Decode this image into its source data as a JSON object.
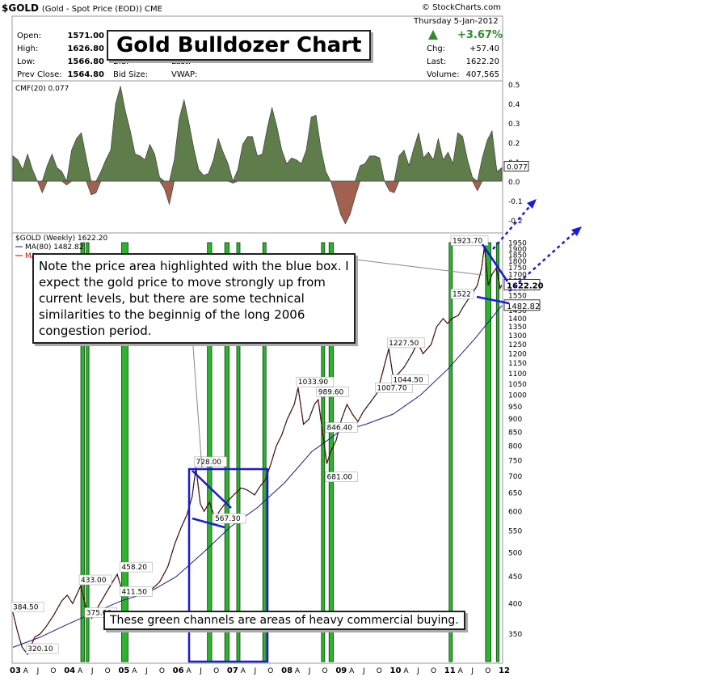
{
  "header": {
    "symbol": "$GOLD",
    "subtitle": "(Gold - Spot Price (EOD)) CME",
    "source": "© StockCharts.com",
    "date": "Thursday 5-Jan-2012",
    "stats_left": [
      {
        "label": "Open:",
        "value": "1571.00"
      },
      {
        "label": "High:",
        "value": "1626.80"
      },
      {
        "label": "Low:",
        "value": "1566.80"
      },
      {
        "label": "Prev Close:",
        "value": "1564.80"
      }
    ],
    "stats_mid": [
      "Bid:",
      "Bid Size:"
    ],
    "stats_mid2": [
      "Last:",
      "VWAP:"
    ],
    "stats_right": [
      {
        "label": "Chg:",
        "value": "+57.40"
      },
      {
        "label": "Last:",
        "value": "1622.20"
      },
      {
        "label": "Volume:",
        "value": "407,565"
      }
    ],
    "pct_change": "+3.67%",
    "up_color": "#2e8b2e"
  },
  "title_box": "Gold Bulldozer Chart",
  "note_box": "Note the price area highlighted with the blue box.  I expect the gold price to move strongly up from current levels, but there are some technical similarities to the beginnig of the long 2006 congestion period.",
  "green_note": "These green channels are areas of heavy commercial buying.",
  "chart_data": [
    {
      "type": "area",
      "label": "CMF(20) 0.077",
      "ylim": [
        -0.25,
        0.5
      ],
      "y_ticks": [
        "0.5",
        "0.4",
        "0.3",
        "0.2",
        "0.1",
        "0.0",
        "-0.1",
        "-0.2"
      ],
      "current": "0.077",
      "colors": {
        "positive": "#5e7d4a",
        "negative": "#a0614e"
      },
      "values": [
        0.13,
        0.11,
        0.06,
        0.14,
        0.06,
        0.0,
        -0.06,
        0.08,
        0.14,
        0.07,
        0.05,
        -0.02,
        0.16,
        0.22,
        0.25,
        0.12,
        -0.07,
        -0.06,
        0.05,
        0.11,
        0.16,
        0.4,
        0.49,
        0.36,
        0.26,
        0.14,
        0.13,
        0.11,
        0.19,
        0.14,
        0.02,
        -0.04,
        -0.12,
        0.11,
        0.32,
        0.42,
        0.3,
        0.17,
        0.06,
        0.03,
        0.04,
        0.11,
        0.22,
        0.15,
        0.09,
        -0.01,
        0.06,
        0.19,
        0.23,
        0.23,
        0.13,
        0.14,
        0.27,
        0.38,
        0.28,
        0.16,
        0.09,
        0.12,
        0.11,
        0.09,
        0.16,
        0.33,
        0.34,
        0.17,
        0.05,
        0.0,
        -0.08,
        -0.17,
        -0.22,
        -0.17,
        -0.08,
        0.08,
        0.09,
        0.13,
        0.13,
        0.12,
        0.0,
        -0.05,
        -0.06,
        0.13,
        0.16,
        0.08,
        0.17,
        0.25,
        0.12,
        0.15,
        0.11,
        0.22,
        0.11,
        0.15,
        0.09,
        0.25,
        0.23,
        0.11,
        0.02,
        -0.05,
        0.12,
        0.21,
        0.26,
        0.05,
        0.07
      ]
    },
    {
      "type": "line",
      "label": "$GOLD (Weekly) 1622.20",
      "legend": [
        "MA(80) 1482.82",
        "MA"
      ],
      "y_scale": "log",
      "ylim": [
        310,
        1990
      ],
      "y_ticks": [
        350,
        400,
        450,
        500,
        550,
        600,
        650,
        700,
        750,
        800,
        850,
        900,
        950,
        1000,
        1050,
        1100,
        1150,
        1200,
        1250,
        1300,
        1350,
        1400,
        1450,
        1500,
        1550,
        1600,
        1650,
        1700,
        1750,
        1800,
        1850,
        1900,
        1950
      ],
      "x_labels": [
        "03",
        "A",
        "J",
        "O",
        "04",
        "A",
        "J",
        "O",
        "05",
        "A",
        "J",
        "O",
        "06",
        "A",
        "J",
        "O",
        "07",
        "A",
        "J",
        "O",
        "08",
        "A",
        "J",
        "O",
        "09",
        "A",
        "J",
        "O",
        "10",
        "A",
        "J",
        "O",
        "11",
        "A",
        "J",
        "O",
        "12"
      ],
      "x_range": [
        "2003-01",
        "2012-01"
      ],
      "price_annotations": [
        "384.50",
        "433.00",
        "458.20",
        "728.00",
        "1033.90",
        "989.60",
        "1007.70",
        "1227.50",
        "1923.70",
        "320.10",
        "375.00",
        "411.50",
        "567.30",
        "846.40",
        "681.00",
        "1044.50",
        "1522"
      ],
      "last_price": "1622.20",
      "ma_label": "1482.82",
      "series": [
        {
          "name": "$GOLD",
          "color": "#111111",
          "x": [
            2003.0,
            2003.08,
            2003.17,
            2003.27,
            2003.4,
            2003.5,
            2003.6,
            2003.75,
            2003.9,
            2004.0,
            2004.1,
            2004.25,
            2004.35,
            2004.45,
            2004.6,
            2004.75,
            2004.92,
            2005.02,
            2005.12,
            2005.25,
            2005.4,
            2005.55,
            2005.7,
            2005.85,
            2005.98,
            2006.1,
            2006.2,
            2006.3,
            2006.37,
            2006.45,
            2006.52,
            2006.62,
            2006.72,
            2006.8,
            2006.9,
            2007.0,
            2007.1,
            2007.2,
            2007.3,
            2007.45,
            2007.55,
            2007.65,
            2007.75,
            2007.85,
            2007.95,
            2008.05,
            2008.18,
            2008.25,
            2008.35,
            2008.45,
            2008.55,
            2008.62,
            2008.7,
            2008.78,
            2008.85,
            2008.95,
            2009.05,
            2009.15,
            2009.25,
            2009.35,
            2009.45,
            2009.55,
            2009.7,
            2009.8,
            2009.92,
            2010.0,
            2010.1,
            2010.2,
            2010.35,
            2010.45,
            2010.55,
            2010.7,
            2010.8,
            2010.92,
            2011.0,
            2011.08,
            2011.2,
            2011.3,
            2011.45,
            2011.55,
            2011.63,
            2011.68,
            2011.75,
            2011.82,
            2011.9,
            2011.97,
            2012.0
          ],
          "y": [
            384.5,
            355,
            330,
            320.1,
            345,
            350,
            360,
            380,
            405,
            415,
            400,
            433,
            390,
            375,
            400,
            425,
            455,
            420,
            425,
            430,
            424,
            425,
            440,
            470,
            520,
            560,
            590,
            640,
            728,
            620,
            600,
            625,
            580,
            600,
            620,
            635,
            650,
            665,
            660,
            645,
            670,
            690,
            740,
            800,
            840,
            900,
            960,
            1033.9,
            880,
            900,
            960,
            980,
            850,
            740,
            780,
            820,
            900,
            960,
            920,
            890,
            930,
            960,
            1007.7,
            1100,
            1227.5,
            1080,
            1100,
            1130,
            1200,
            1260,
            1200,
            1250,
            1350,
            1400,
            1370,
            1400,
            1420,
            1480,
            1560,
            1620,
            1750,
            1923.7,
            1620,
            1700,
            1750,
            1600,
            1622.2
          ]
        },
        {
          "name": "MA(80)",
          "color": "#1a1a8c",
          "x": [
            2003.0,
            2003.5,
            2004.0,
            2004.5,
            2005.0,
            2005.5,
            2006.0,
            2006.5,
            2007.0,
            2007.5,
            2008.0,
            2008.5,
            2009.0,
            2009.5,
            2010.0,
            2010.5,
            2011.0,
            2011.5,
            2012.0
          ],
          "y": [
            330,
            345,
            365,
            385,
            405,
            420,
            450,
            500,
            560,
            610,
            680,
            780,
            850,
            880,
            920,
            1000,
            1120,
            1280,
            1482.82
          ]
        }
      ],
      "green_channels": [
        {
          "x0": 2004.25,
          "x1": 2004.32
        },
        {
          "x0": 2004.35,
          "x1": 2004.4
        },
        {
          "x0": 2005.0,
          "x1": 2005.12
        },
        {
          "x0": 2006.58,
          "x1": 2006.66
        },
        {
          "x0": 2006.9,
          "x1": 2006.98
        },
        {
          "x0": 2007.12,
          "x1": 2007.18
        },
        {
          "x0": 2007.6,
          "x1": 2007.66
        },
        {
          "x0": 2008.68,
          "x1": 2008.74
        },
        {
          "x0": 2008.82,
          "x1": 2008.9
        },
        {
          "x0": 2011.03,
          "x1": 2011.09
        },
        {
          "x0": 2011.7,
          "x1": 2011.8
        },
        {
          "x0": 2011.9,
          "x1": 2011.95
        }
      ]
    }
  ]
}
